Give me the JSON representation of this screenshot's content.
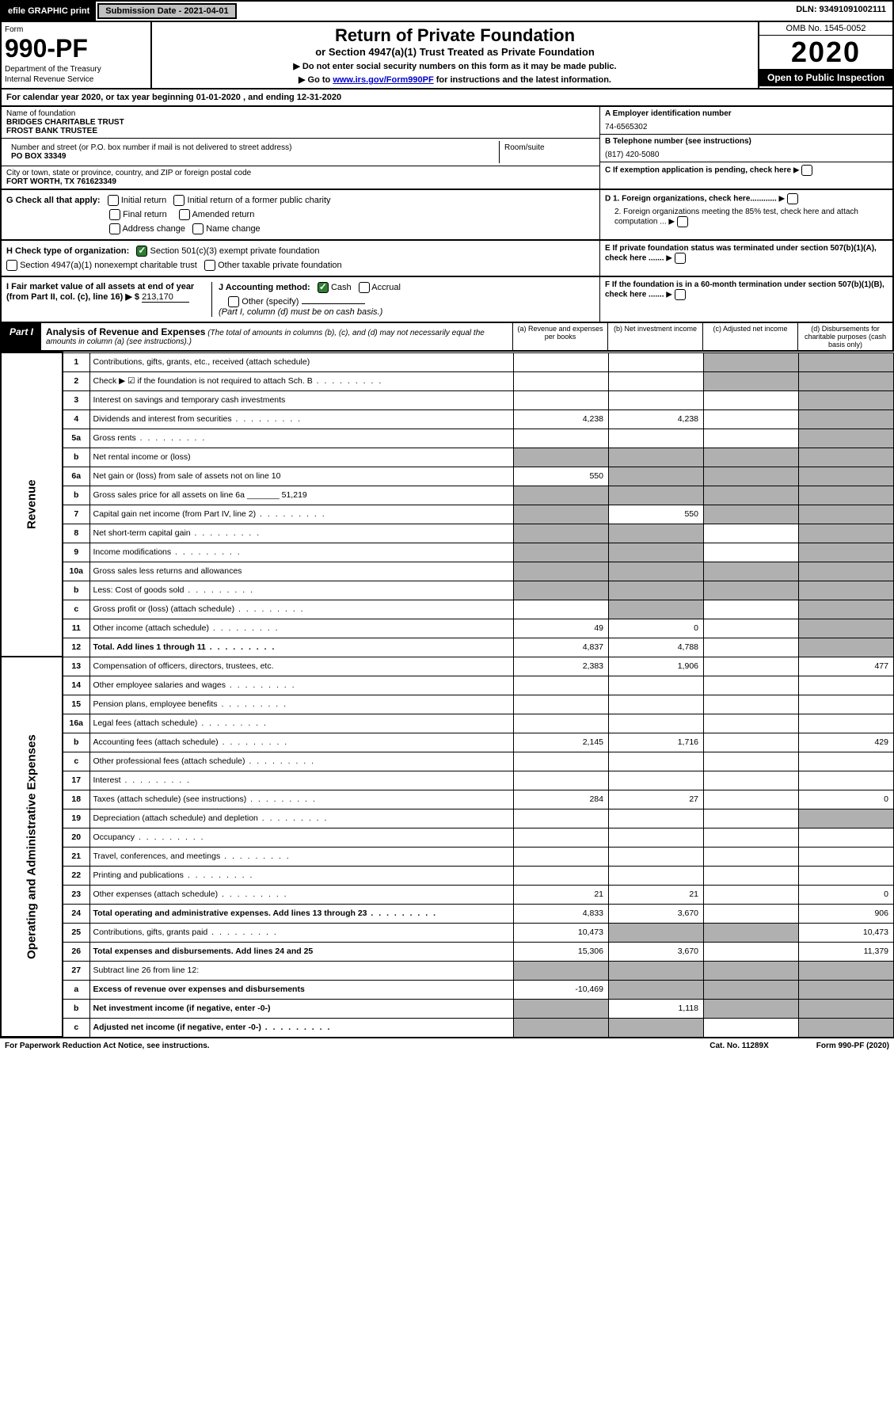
{
  "top": {
    "efile": "efile GRAPHIC print",
    "sub_date_lbl": "Submission Date - 2021-04-01",
    "dln": "DLN: 93491091002111"
  },
  "header": {
    "form_word": "Form",
    "form_num": "990-PF",
    "dept1": "Department of the Treasury",
    "dept2": "Internal Revenue Service",
    "title": "Return of Private Foundation",
    "subtitle": "or Section 4947(a)(1) Trust Treated as Private Foundation",
    "instr1": "▶ Do not enter social security numbers on this form as it may be made public.",
    "instr2_pre": "▶ Go to ",
    "instr2_link": "www.irs.gov/Form990PF",
    "instr2_post": " for instructions and the latest information.",
    "omb": "OMB No. 1545-0052",
    "year": "2020",
    "open": "Open to Public Inspection"
  },
  "calyear": "For calendar year 2020, or tax year beginning 01-01-2020                          , and ending 12-31-2020",
  "id": {
    "name_lbl": "Name of foundation",
    "name": "BRIDGES CHARITABLE TRUST\nFROST BANK TRUSTEE",
    "addr_lbl": "Number and street (or P.O. box number if mail is not delivered to street address)",
    "addr": "PO BOX 33349",
    "room_lbl": "Room/suite",
    "city_lbl": "City or town, state or province, country, and ZIP or foreign postal code",
    "city": "FORT WORTH, TX  761623349",
    "ein_lbl": "A Employer identification number",
    "ein": "74-6565302",
    "tel_lbl": "B Telephone number (see instructions)",
    "tel": "(817) 420-5080",
    "c": "C If exemption application is pending, check here",
    "d1": "D 1. Foreign organizations, check here............",
    "d2": "2. Foreign organizations meeting the 85% test, check here and attach computation ...",
    "e": "E  If private foundation status was terminated under section 507(b)(1)(A), check here .......",
    "f": "F  If the foundation is in a 60-month termination under section 507(b)(1)(B), check here .......",
    "g_lbl": "G Check all that apply:",
    "g_opts": [
      "Initial return",
      "Initial return of a former public charity",
      "Final return",
      "Amended return",
      "Address change",
      "Name change"
    ],
    "h_lbl": "H Check type of organization:",
    "h1": "Section 501(c)(3) exempt private foundation",
    "h2": "Section 4947(a)(1) nonexempt charitable trust",
    "h3": "Other taxable private foundation",
    "i_lbl": "I Fair market value of all assets at end of year (from Part II, col. (c), line 16) ▶ $",
    "i_val": "213,170",
    "j_lbl": "J Accounting method:",
    "j1": "Cash",
    "j2": "Accrual",
    "j_other": "Other (specify)",
    "j_note": "(Part I, column (d) must be on cash basis.)"
  },
  "part1": {
    "lbl": "Part I",
    "ttl": "Analysis of Revenue and Expenses",
    "note": " (The total of amounts in columns (b), (c), and (d) may not necessarily equal the amounts in column (a) (see instructions).)",
    "cols": [
      "(a)    Revenue and expenses per books",
      "(b)   Net investment income",
      "(c)   Adjusted net income",
      "(d)   Disbursements for charitable purposes (cash basis only)"
    ]
  },
  "side": {
    "rev": "Revenue",
    "exp": "Operating and Administrative Expenses"
  },
  "rows": [
    {
      "n": "1",
      "d": "Contributions, gifts, grants, etc., received (attach schedule)",
      "a": "",
      "b": "",
      "c": "s",
      "dd": "s"
    },
    {
      "n": "2",
      "d": "Check ▶ ☑ if the foundation is not required to attach Sch. B",
      "dots": true,
      "a": "",
      "b": "",
      "c": "s",
      "dd": "s"
    },
    {
      "n": "3",
      "d": "Interest on savings and temporary cash investments",
      "a": "",
      "b": "",
      "c": "",
      "dd": "s"
    },
    {
      "n": "4",
      "d": "Dividends and interest from securities",
      "dots": true,
      "a": "4,238",
      "b": "4,238",
      "c": "",
      "dd": "s"
    },
    {
      "n": "5a",
      "d": "Gross rents",
      "dots": true,
      "a": "",
      "b": "",
      "c": "",
      "dd": "s"
    },
    {
      "n": "b",
      "d": "Net rental income or (loss)",
      "a": "s",
      "b": "s",
      "c": "s",
      "dd": "s"
    },
    {
      "n": "6a",
      "d": "Net gain or (loss) from sale of assets not on line 10",
      "a": "550",
      "b": "s",
      "c": "s",
      "dd": "s"
    },
    {
      "n": "b",
      "d": "Gross sales price for all assets on line 6a _______ 51,219",
      "a": "s",
      "b": "s",
      "c": "s",
      "dd": "s"
    },
    {
      "n": "7",
      "d": "Capital gain net income (from Part IV, line 2)",
      "dots": true,
      "a": "s",
      "b": "550",
      "c": "s",
      "dd": "s"
    },
    {
      "n": "8",
      "d": "Net short-term capital gain",
      "dots": true,
      "a": "s",
      "b": "s",
      "c": "",
      "dd": "s"
    },
    {
      "n": "9",
      "d": "Income modifications",
      "dots": true,
      "a": "s",
      "b": "s",
      "c": "",
      "dd": "s"
    },
    {
      "n": "10a",
      "d": "Gross sales less returns and allowances",
      "a": "s",
      "b": "s",
      "c": "s",
      "dd": "s"
    },
    {
      "n": "b",
      "d": "Less: Cost of goods sold",
      "dots": true,
      "a": "s",
      "b": "s",
      "c": "s",
      "dd": "s"
    },
    {
      "n": "c",
      "d": "Gross profit or (loss) (attach schedule)",
      "dots": true,
      "a": "",
      "b": "s",
      "c": "",
      "dd": "s"
    },
    {
      "n": "11",
      "d": "Other income (attach schedule)",
      "dots": true,
      "a": "49",
      "b": "0",
      "c": "",
      "dd": "s"
    },
    {
      "n": "12",
      "d": "Total. Add lines 1 through 11",
      "dots": true,
      "bold": true,
      "a": "4,837",
      "b": "4,788",
      "c": "",
      "dd": "s"
    },
    {
      "n": "13",
      "d": "Compensation of officers, directors, trustees, etc.",
      "a": "2,383",
      "b": "1,906",
      "c": "",
      "dd": "477"
    },
    {
      "n": "14",
      "d": "Other employee salaries and wages",
      "dots": true,
      "a": "",
      "b": "",
      "c": "",
      "dd": ""
    },
    {
      "n": "15",
      "d": "Pension plans, employee benefits",
      "dots": true,
      "a": "",
      "b": "",
      "c": "",
      "dd": ""
    },
    {
      "n": "16a",
      "d": "Legal fees (attach schedule)",
      "dots": true,
      "a": "",
      "b": "",
      "c": "",
      "dd": ""
    },
    {
      "n": "b",
      "d": "Accounting fees (attach schedule)",
      "dots": true,
      "a": "2,145",
      "b": "1,716",
      "c": "",
      "dd": "429"
    },
    {
      "n": "c",
      "d": "Other professional fees (attach schedule)",
      "dots": true,
      "a": "",
      "b": "",
      "c": "",
      "dd": ""
    },
    {
      "n": "17",
      "d": "Interest",
      "dots": true,
      "a": "",
      "b": "",
      "c": "",
      "dd": ""
    },
    {
      "n": "18",
      "d": "Taxes (attach schedule) (see instructions)",
      "dots": true,
      "a": "284",
      "b": "27",
      "c": "",
      "dd": "0"
    },
    {
      "n": "19",
      "d": "Depreciation (attach schedule) and depletion",
      "dots": true,
      "a": "",
      "b": "",
      "c": "",
      "dd": "s"
    },
    {
      "n": "20",
      "d": "Occupancy",
      "dots": true,
      "a": "",
      "b": "",
      "c": "",
      "dd": ""
    },
    {
      "n": "21",
      "d": "Travel, conferences, and meetings",
      "dots": true,
      "a": "",
      "b": "",
      "c": "",
      "dd": ""
    },
    {
      "n": "22",
      "d": "Printing and publications",
      "dots": true,
      "a": "",
      "b": "",
      "c": "",
      "dd": ""
    },
    {
      "n": "23",
      "d": "Other expenses (attach schedule)",
      "dots": true,
      "a": "21",
      "b": "21",
      "c": "",
      "dd": "0"
    },
    {
      "n": "24",
      "d": "Total operating and administrative expenses. Add lines 13 through 23",
      "dots": true,
      "bold": true,
      "a": "4,833",
      "b": "3,670",
      "c": "",
      "dd": "906"
    },
    {
      "n": "25",
      "d": "Contributions, gifts, grants paid",
      "dots": true,
      "a": "10,473",
      "b": "s",
      "c": "s",
      "dd": "10,473"
    },
    {
      "n": "26",
      "d": "Total expenses and disbursements. Add lines 24 and 25",
      "bold": true,
      "a": "15,306",
      "b": "3,670",
      "c": "",
      "dd": "11,379"
    },
    {
      "n": "27",
      "d": "Subtract line 26 from line 12:",
      "a": "s",
      "b": "s",
      "c": "s",
      "dd": "s"
    },
    {
      "n": "a",
      "d": "Excess of revenue over expenses and disbursements",
      "bold": true,
      "a": "-10,469",
      "b": "s",
      "c": "s",
      "dd": "s"
    },
    {
      "n": "b",
      "d": "Net investment income (if negative, enter -0-)",
      "bold": true,
      "a": "s",
      "b": "1,118",
      "c": "s",
      "dd": "s"
    },
    {
      "n": "c",
      "d": "Adjusted net income (if negative, enter -0-)",
      "bold": true,
      "dots": true,
      "a": "s",
      "b": "s",
      "c": "",
      "dd": "s"
    }
  ],
  "footer": {
    "left": "For Paperwork Reduction Act Notice, see instructions.",
    "mid": "Cat. No. 11289X",
    "right": "Form 990-PF (2020)"
  }
}
